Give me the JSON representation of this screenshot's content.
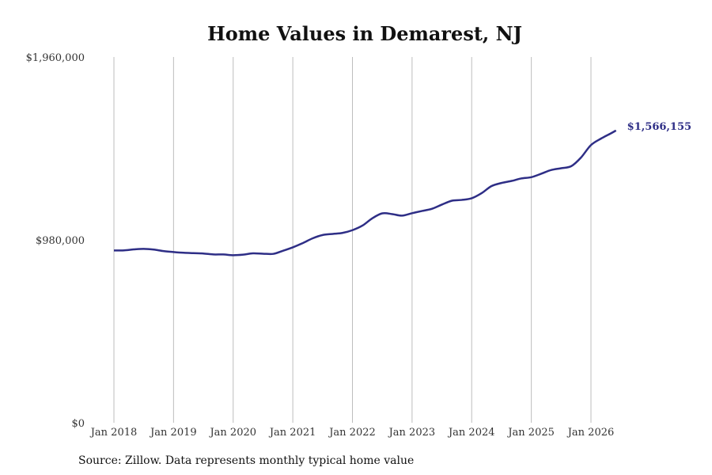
{
  "chart_data": {
    "type": "line",
    "title": "Home Values in Demarest, NJ",
    "source": "Source: Zillow. Data represents monthly typical home value",
    "xlabel": "",
    "ylabel": "",
    "ylim": [
      0,
      1960000
    ],
    "y_ticks": [
      {
        "value": 0,
        "label": "$0"
      },
      {
        "value": 980000,
        "label": "$980,000"
      },
      {
        "value": 1960000,
        "label": "$1,960,000"
      }
    ],
    "x_ticks": [
      {
        "value": 2018.0,
        "label": "Jan 2018"
      },
      {
        "value": 2019.0,
        "label": "Jan 2019"
      },
      {
        "value": 2020.0,
        "label": "Jan 2020"
      },
      {
        "value": 2021.0,
        "label": "Jan 2021"
      },
      {
        "value": 2022.0,
        "label": "Jan 2022"
      },
      {
        "value": 2023.0,
        "label": "Jan 2023"
      },
      {
        "value": 2024.0,
        "label": "Jan 2024"
      },
      {
        "value": 2025.0,
        "label": "Jan 2025"
      },
      {
        "value": 2026.0,
        "label": "Jan 2026"
      }
    ],
    "xlim": [
      2018.0,
      2026.0
    ],
    "grid": "vertical",
    "series": [
      {
        "color": "#2e2e86",
        "end_label": "$1,566,155",
        "points": [
          [
            2018.0,
            923000
          ],
          [
            2018.17,
            924000
          ],
          [
            2018.33,
            929000
          ],
          [
            2018.5,
            932000
          ],
          [
            2018.67,
            928000
          ],
          [
            2018.83,
            920000
          ],
          [
            2019.0,
            915000
          ],
          [
            2019.17,
            911000
          ],
          [
            2019.33,
            909000
          ],
          [
            2019.5,
            907000
          ],
          [
            2019.67,
            902000
          ],
          [
            2019.83,
            902000
          ],
          [
            2020.0,
            898000
          ],
          [
            2020.17,
            901000
          ],
          [
            2020.33,
            908000
          ],
          [
            2020.5,
            906000
          ],
          [
            2020.67,
            905000
          ],
          [
            2020.83,
            921000
          ],
          [
            2021.0,
            940000
          ],
          [
            2021.17,
            963000
          ],
          [
            2021.33,
            988000
          ],
          [
            2021.5,
            1006000
          ],
          [
            2021.67,
            1012000
          ],
          [
            2021.83,
            1017000
          ],
          [
            2022.0,
            1032000
          ],
          [
            2022.17,
            1057000
          ],
          [
            2022.33,
            1095000
          ],
          [
            2022.5,
            1122000
          ],
          [
            2022.67,
            1118000
          ],
          [
            2022.83,
            1110000
          ],
          [
            2023.0,
            1123000
          ],
          [
            2023.17,
            1135000
          ],
          [
            2023.33,
            1146000
          ],
          [
            2023.5,
            1169000
          ],
          [
            2023.67,
            1190000
          ],
          [
            2023.83,
            1194000
          ],
          [
            2024.0,
            1203000
          ],
          [
            2024.17,
            1231000
          ],
          [
            2024.33,
            1268000
          ],
          [
            2024.5,
            1285000
          ],
          [
            2024.67,
            1296000
          ],
          [
            2024.83,
            1309000
          ],
          [
            2025.0,
            1316000
          ],
          [
            2025.17,
            1335000
          ],
          [
            2025.33,
            1354000
          ],
          [
            2025.5,
            1364000
          ],
          [
            2025.67,
            1375000
          ],
          [
            2025.83,
            1420000
          ],
          [
            2026.0,
            1488000
          ],
          [
            2026.17,
            1523000
          ],
          [
            2026.33,
            1550000
          ],
          [
            2026.42,
            1566155
          ]
        ]
      }
    ]
  }
}
